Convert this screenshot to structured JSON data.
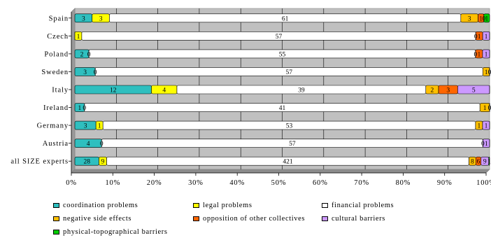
{
  "chart_data": {
    "type": "bar",
    "orientation": "horizontal",
    "stacked": "percent",
    "title": "",
    "xlabel": "",
    "ylabel": "",
    "xlim": [
      0,
      100
    ],
    "x_ticks": [
      "0%",
      "10%",
      "20%",
      "30%",
      "40%",
      "50%",
      "60%",
      "70%",
      "80%",
      "90%",
      "100%"
    ],
    "grid": true,
    "legend_position": "bottom",
    "categories": [
      "Spain",
      "Czech",
      "Poland",
      "Sweden",
      "Italy",
      "Ireland",
      "Germany",
      "Austria",
      "all SIZE experts"
    ],
    "series": [
      {
        "name": "coordination problems",
        "color": "#2fbfbf",
        "values": [
          3,
          0,
          2,
          3,
          12,
          1,
          3,
          4,
          28
        ]
      },
      {
        "name": "legal problems",
        "color": "#ffff00",
        "values": [
          3,
          1,
          0,
          0,
          4,
          0,
          1,
          0,
          9
        ]
      },
      {
        "name": "financial problems",
        "color": "#ffffff",
        "values": [
          61,
          57,
          55,
          57,
          39,
          41,
          53,
          57,
          421
        ]
      },
      {
        "name": "negative side effects",
        "color": "#ffc000",
        "values": [
          3,
          0,
          0,
          1,
          2,
          1,
          1,
          0,
          8
        ]
      },
      {
        "name": "opposition of other collectives",
        "color": "#ff6600",
        "values": [
          1,
          1,
          1,
          0,
          3,
          0,
          0,
          0,
          6
        ]
      },
      {
        "name": "cultural barriers",
        "color": "#cc99ff",
        "values": [
          0,
          1,
          1,
          0,
          5,
          0,
          1,
          1,
          9
        ]
      },
      {
        "name": "physical-topographical barriers",
        "color": "#00cc00",
        "values": [
          1,
          0,
          0,
          0,
          0,
          0,
          0,
          0,
          1
        ]
      }
    ]
  }
}
